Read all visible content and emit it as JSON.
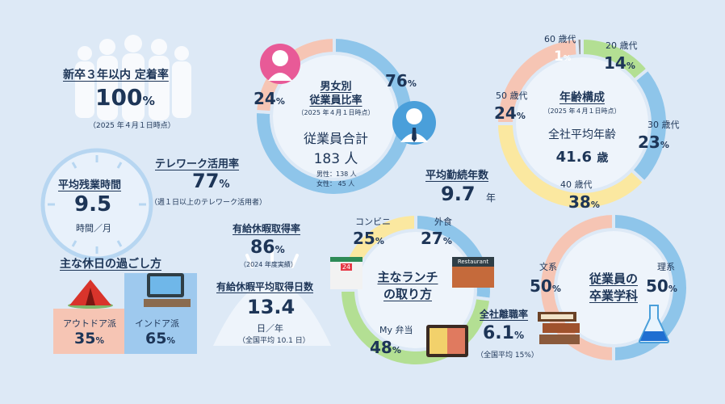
{
  "colors": {
    "blue": "#8ec5ea",
    "pink": "#f6c5b4",
    "yellow": "#fbe8a0",
    "green": "#b3df93",
    "gray": "#8c8c8c",
    "navy": "#1d3557",
    "bg": "#dde9f6"
  },
  "retention": {
    "title": "新卒３年以内 定着率",
    "value": "100",
    "unit": "%",
    "note": "（2025 年４月１日時点）"
  },
  "overtime": {
    "title": "平均残業時間",
    "value": "9.5",
    "unit": "時間／月"
  },
  "telework": {
    "title": "テレワーク活用率",
    "value": "77",
    "unit": "%",
    "note": "（週１日以上のテレワーク活用者）"
  },
  "holiday": {
    "title": "主な休日の過ごし方",
    "outdoor_label": "アウトドア派",
    "outdoor_value": "35",
    "indoor_label": "インドア派",
    "indoor_value": "65",
    "unit": "%"
  },
  "paid_leave": {
    "rate_title": "有給休暇取得率",
    "rate_value": "86",
    "rate_unit": "%",
    "rate_note": "（2024 年度実績）",
    "days_title": "有給休暇平均取得日数",
    "days_value": "13.4",
    "days_unit": "日／年",
    "days_note": "（全国平均 10.1 日）"
  },
  "gender": {
    "title_line1": "男女別",
    "title_line2": "従業員比率",
    "note": "（2025 年４月１日時点）",
    "female_pct": "24",
    "male_pct": "76",
    "unit": "%",
    "total_label": "従業員合計",
    "total_value": "183 人",
    "male_count": "男性：138 人",
    "female_count": "女性：  45 人"
  },
  "tenure": {
    "title": "平均勤続年数",
    "value": "9.7",
    "unit": "年"
  },
  "age": {
    "title": "年齢構成",
    "note": "（2025 年４月１日時点）",
    "avg_label": "全社平均年齢",
    "avg_value": "41.6",
    "avg_unit": "歳",
    "segments": [
      {
        "label": "60 歳代",
        "value": "1"
      },
      {
        "label": "20 歳代",
        "value": "14"
      },
      {
        "label": "30 歳代",
        "value": "23"
      },
      {
        "label": "40 歳代",
        "value": "38"
      },
      {
        "label": "50 歳代",
        "value": "24"
      }
    ],
    "unit": "%"
  },
  "lunch": {
    "title_line1": "主なランチ",
    "title_line2": "の取り方",
    "unit": "%",
    "items": [
      {
        "label": "コンビニ",
        "value": "25"
      },
      {
        "label": "外食",
        "value": "27"
      },
      {
        "label": "My 弁当",
        "value": "48"
      }
    ],
    "restaurant_sign": "Restaurant",
    "store_sign": "24"
  },
  "turnover": {
    "title": "全社離職率",
    "value": "6.1",
    "unit": "%",
    "note": "（全国平均 15%）"
  },
  "major": {
    "title_line1": "従業員の",
    "title_line2": "卒業学科",
    "items": [
      {
        "label": "文系",
        "value": "50"
      },
      {
        "label": "理系",
        "value": "50"
      }
    ],
    "unit": "%"
  }
}
